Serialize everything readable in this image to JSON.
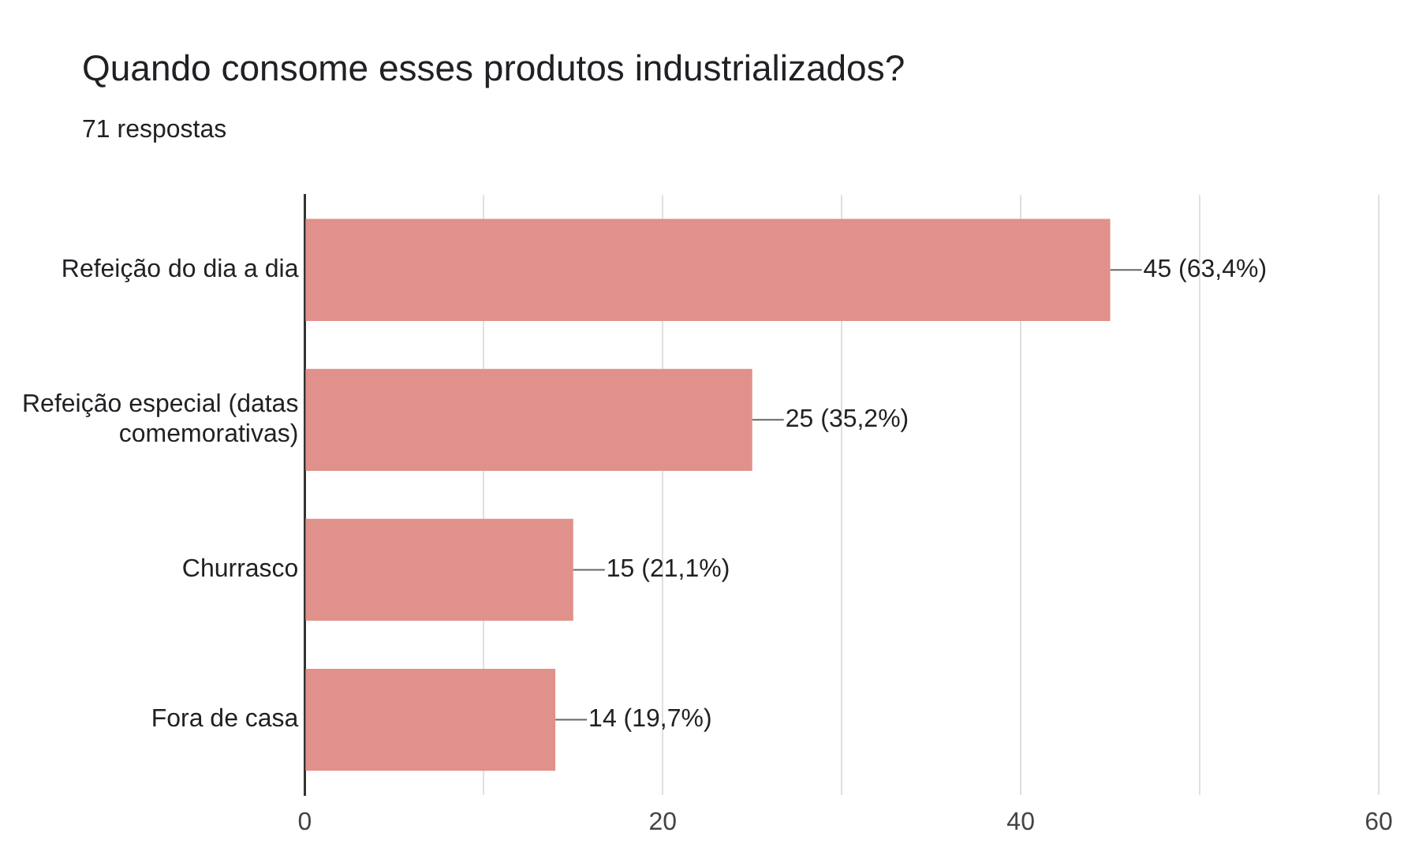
{
  "chart_data": {
    "type": "bar",
    "orientation": "horizontal",
    "title": "Quando consome esses produtos industrializados?",
    "subtitle": "71 respostas",
    "categories": [
      "Refeição do dia a dia",
      "Refeição especial (datas comemorativas)",
      "Churrasco",
      "Fora de casa"
    ],
    "values": [
      45,
      25,
      15,
      14
    ],
    "color": "#e0918c",
    "value_labels": [
      "45 (63,4%)",
      "25 (35,2%)",
      "15 (21,1%)",
      "14 (19,7%)"
    ],
    "xlim": [
      0,
      60
    ],
    "xticks": [
      0,
      {
        "value": 10,
        "label": null
      },
      20,
      {
        "value": 30,
        "label": null
      },
      40,
      {
        "value": 50,
        "label": null
      },
      60
    ],
    "grid": "x"
  }
}
